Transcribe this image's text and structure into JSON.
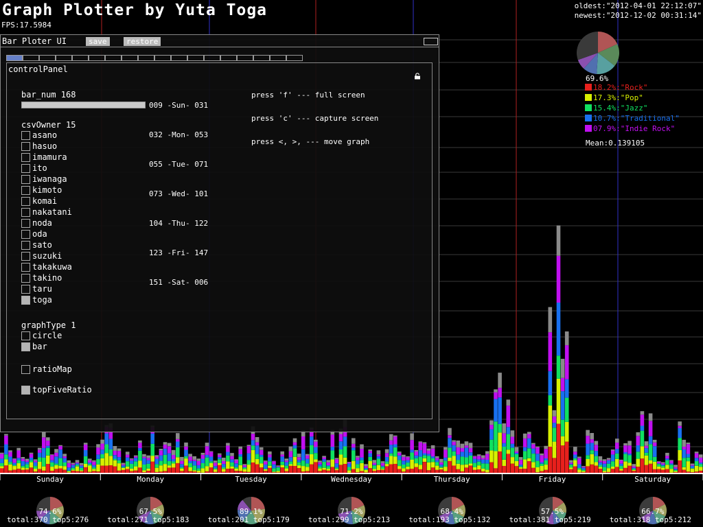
{
  "app": {
    "title": "Graph Plotter by Yuta Toga",
    "fps": "FPS:17.5984",
    "oldest": "oldest:\"2012-04-01 22:12:07\"",
    "newest": "newest:\"2012-12-02 00:31:14\""
  },
  "ui_window": {
    "title": "Bar Ploter UI",
    "save_label": "save",
    "restore_label": "restore",
    "tab_count": 18,
    "panel_title": "controlPanel",
    "bar_num_label": "bar_num 168",
    "bar_num_value": 168,
    "csv_owner_label": "csvOwner 15",
    "owners": [
      {
        "name": "asano",
        "checked": false
      },
      {
        "name": "hasuo",
        "checked": false
      },
      {
        "name": "imamura",
        "checked": false
      },
      {
        "name": "ito",
        "checked": false
      },
      {
        "name": "iwanaga",
        "checked": false
      },
      {
        "name": "kimoto",
        "checked": false
      },
      {
        "name": "komai",
        "checked": false
      },
      {
        "name": "nakatani",
        "checked": false
      },
      {
        "name": "noda",
        "checked": false
      },
      {
        "name": "oda",
        "checked": false
      },
      {
        "name": "sato",
        "checked": false
      },
      {
        "name": "suzuki",
        "checked": false
      },
      {
        "name": "takakuwa",
        "checked": false
      },
      {
        "name": "takino",
        "checked": false
      },
      {
        "name": "taru",
        "checked": false
      },
      {
        "name": "toga",
        "checked": true
      }
    ],
    "graph_type_label": "graphType 1",
    "graph_types": [
      {
        "name": "circle",
        "checked": false
      },
      {
        "name": "bar",
        "checked": true
      }
    ],
    "ratio_map": {
      "name": "ratioMap",
      "checked": false
    },
    "top_five_ratio": {
      "name": "topFiveRatio",
      "checked": true
    },
    "day_ranges": [
      "009 -Sun- 031",
      "032 -Mon- 053",
      "055 -Tue- 071",
      "073 -Wed- 101",
      "104 -Thu- 122",
      "123 -Fri- 147",
      "151 -Sat- 006"
    ],
    "help": [
      "press 'f' --- full screen",
      "press 'c' --- capture screen",
      "press <, >, --- move graph"
    ]
  },
  "summary": {
    "top_pct": "69.6%",
    "legend": [
      {
        "text": "18.2%:\"Rock\"",
        "color": "#e8201c"
      },
      {
        "text": "17.3%:\"Pop\"",
        "color": "#d8f000"
      },
      {
        "text": "15.4%:\"Jazz\"",
        "color": "#10e060"
      },
      {
        "text": "10.7%:\"Traditional\"",
        "color": "#1870f0"
      },
      {
        "text": "07.9%:\"Indie Rock\"",
        "color": "#c010f0"
      }
    ],
    "pie_slices": [
      18.2,
      17.3,
      15.4,
      10.7,
      7.9,
      30.4
    ],
    "mean": "Mean:0.139105"
  },
  "colors": {
    "rock": "#e8201c",
    "pop": "#d8f000",
    "jazz": "#10e060",
    "traditional": "#1870f0",
    "indie": "#c010f0",
    "other": "#8a8a8a",
    "gridline": "#3a3a3a",
    "sun_line": "#3030c8",
    "noon_line": "#b02020"
  },
  "days": [
    {
      "label": "Sunday",
      "pct": "74.6%",
      "totals": "total:370 top5:276"
    },
    {
      "label": "Monday",
      "pct": "67.5%",
      "totals": "total:271 top5:183"
    },
    {
      "label": "Tuesday",
      "pct": "89.1%",
      "totals": "total:201 top5:179"
    },
    {
      "label": "Wednesday",
      "pct": "71.2%",
      "totals": "total:299 top5:213"
    },
    {
      "label": "Thursday",
      "pct": "68.4%",
      "totals": "total:193 top5:132"
    },
    {
      "label": "Friday",
      "pct": "57.5%",
      "totals": "total:381 top5:219"
    },
    {
      "label": "Saturday",
      "pct": "66.7%",
      "totals": "total:318 top5:212"
    }
  ]
}
